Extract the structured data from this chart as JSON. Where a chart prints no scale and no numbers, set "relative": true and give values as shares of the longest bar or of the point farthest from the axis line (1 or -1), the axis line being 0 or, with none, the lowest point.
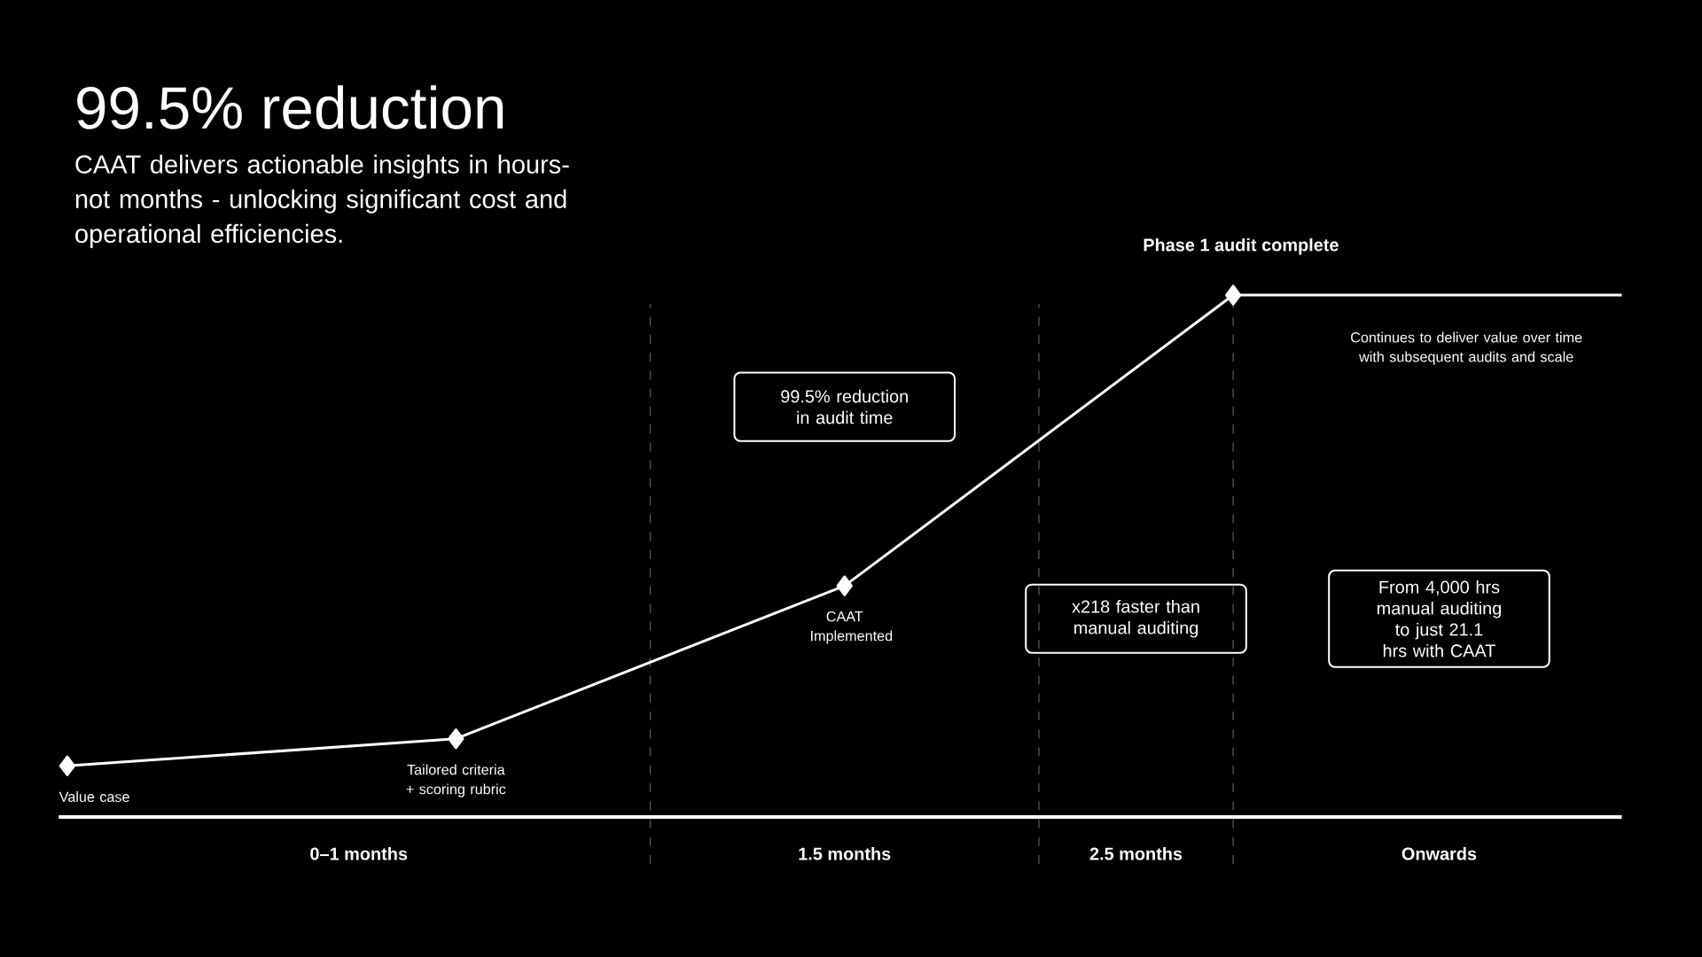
{
  "chart_data": {
    "type": "line",
    "title": "99.5% reduction",
    "subtitle": "CAAT delivers actionable insights in hours- not months -  unlocking significant cost and operational efficiencies.",
    "relative": true,
    "categories": [
      null,
      null,
      null,
      null,
      null
    ],
    "series": [
      {
        "color": "#ffffff",
        "marker": "diamond",
        "values": [
          0.098,
          0.15,
          0.443,
          1,
          null
        ]
      },
      {
        "color": "#ffffff",
        "marker": "none",
        "values": [
          null,
          null,
          null,
          1,
          1
        ]
      }
    ],
    "annotations": [
      "Value case",
      "Tailored criteria + scoring rubric",
      "CAAT Implemented",
      "Phase 1 audit complete",
      "99.5% reduction in audit time",
      "x218 faster than manual auditing",
      "From 4,000 hrs manual auditing to just 21.1 hrs with CAAT",
      "Continues to deliver value over time with subsequent audits and scale",
      "0–1 months",
      "1.5 months",
      "2.5 months",
      "Onwards"
    ]
  }
}
